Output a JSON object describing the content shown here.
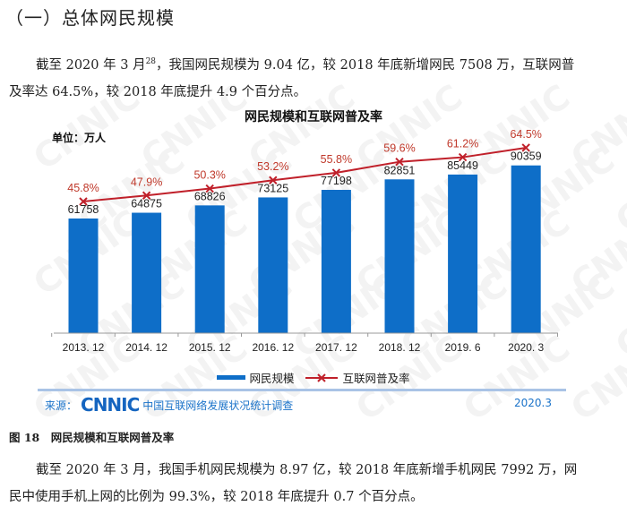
{
  "heading": "（一）总体网民规模",
  "paragraph1": {
    "line1_a": "截至 2020 年 3 月",
    "line1_sup": "28",
    "line1_b": "，我国网民规模为 9.04 亿，较 2018 年底新增网民 7508 万，互联网普",
    "line2": "及率达 64.5%，较 2018 年底提升 4.9 个百分点。"
  },
  "figure": {
    "unit_label": "单位：万人",
    "source_label": "来源：",
    "source_logo": "CNNIC",
    "source_text": "中国互联网络发展状况统计调查",
    "source_date": "2020.3",
    "watermark": "CNNIC",
    "colors": {
      "bar": "#0e6ec8",
      "line": "#c0202a",
      "rate_label": "#c0392b"
    }
  },
  "caption": "图 18　网民规模和互联网普及率",
  "paragraph2": {
    "line1": "截至 2020 年 3 月，我国手机网民规模为 8.97 亿，较 2018 年底新增手机网民 7992 万，网",
    "line2": "民中使用手机上网的比例为 99.3%，较 2018 年底提升 0.7 个百分点。"
  },
  "chart_data": {
    "type": "bar",
    "title": "网民规模和互联网普及率",
    "xlabel": "",
    "ylabel": "单位：万人",
    "categories": [
      "2013. 12",
      "2014. 12",
      "2015. 12",
      "2016. 12",
      "2017. 12",
      "2018. 12",
      "2019. 6",
      "2020. 3"
    ],
    "series": [
      {
        "name": "网民规模",
        "type": "bar",
        "values": [
          61758,
          64875,
          68826,
          73125,
          77198,
          82851,
          85449,
          90359
        ]
      },
      {
        "name": "互联网普及率",
        "type": "line",
        "unit": "%",
        "values": [
          45.8,
          47.9,
          50.3,
          53.2,
          55.8,
          59.6,
          61.2,
          64.5
        ],
        "labels": [
          "45.8%",
          "47.9%",
          "50.3%",
          "53.2%",
          "55.8%",
          "59.6%",
          "61.2%",
          "64.5%"
        ]
      }
    ],
    "ylim": [
      0,
      100000
    ],
    "grid": false,
    "legend": "bottom"
  }
}
